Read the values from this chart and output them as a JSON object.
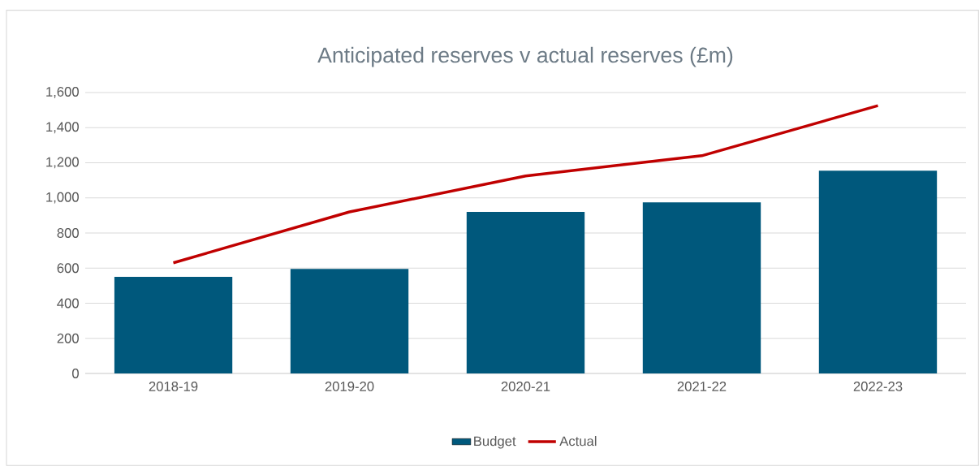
{
  "chart_data": {
    "type": "bar",
    "title": "Anticipated reserves v actual reserves (£m)",
    "categories": [
      "2018-19",
      "2019-20",
      "2020-21",
      "2021-22",
      "2022-23"
    ],
    "series": [
      {
        "name": "Budget",
        "color": "#00587c",
        "values": [
          550,
          595,
          920,
          975,
          1155
        ]
      },
      {
        "name": "Actual",
        "type": "line",
        "color": "#c00000",
        "values": [
          630,
          920,
          1125,
          1240,
          1525
        ]
      }
    ],
    "ylim": [
      0,
      1600
    ],
    "yticks": [
      0,
      200,
      400,
      600,
      800,
      {
        "value": 1000,
        "label": "1,000"
      },
      {
        "value": 1200,
        "label": "1,200"
      },
      {
        "value": 1400,
        "label": "1,400"
      },
      {
        "value": 1600,
        "label": "1,600"
      }
    ],
    "grid": "y",
    "legend": "bottom"
  }
}
